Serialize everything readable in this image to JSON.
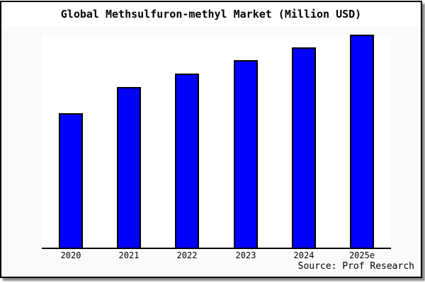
{
  "chart_data": {
    "type": "bar",
    "title": "Global Methsulfuron-methyl Market (Million USD)",
    "categories": [
      "2020",
      "2021",
      "2022",
      "2023",
      "2024",
      "2025e"
    ],
    "values": [
      63,
      75.3,
      81.7,
      88,
      94,
      100
    ],
    "values_note": "no y-axis ticks or labels shown; values estimated from bar pixel heights relative to 2025e = 100",
    "ylim": [
      0,
      100.3
    ],
    "xlabel": "",
    "ylabel": "",
    "grid": false,
    "legend": "none",
    "bar_fill_color": "#0000ff",
    "bar_edge_color": "#000000",
    "source": "Source: Prof Research"
  },
  "colors": {
    "figure_background": "#fafafa",
    "title_band_background": "#ffffff",
    "plot_background": "#ffffff",
    "frame_border": "#000000",
    "axis_line": "#000000",
    "text": "#000000"
  }
}
